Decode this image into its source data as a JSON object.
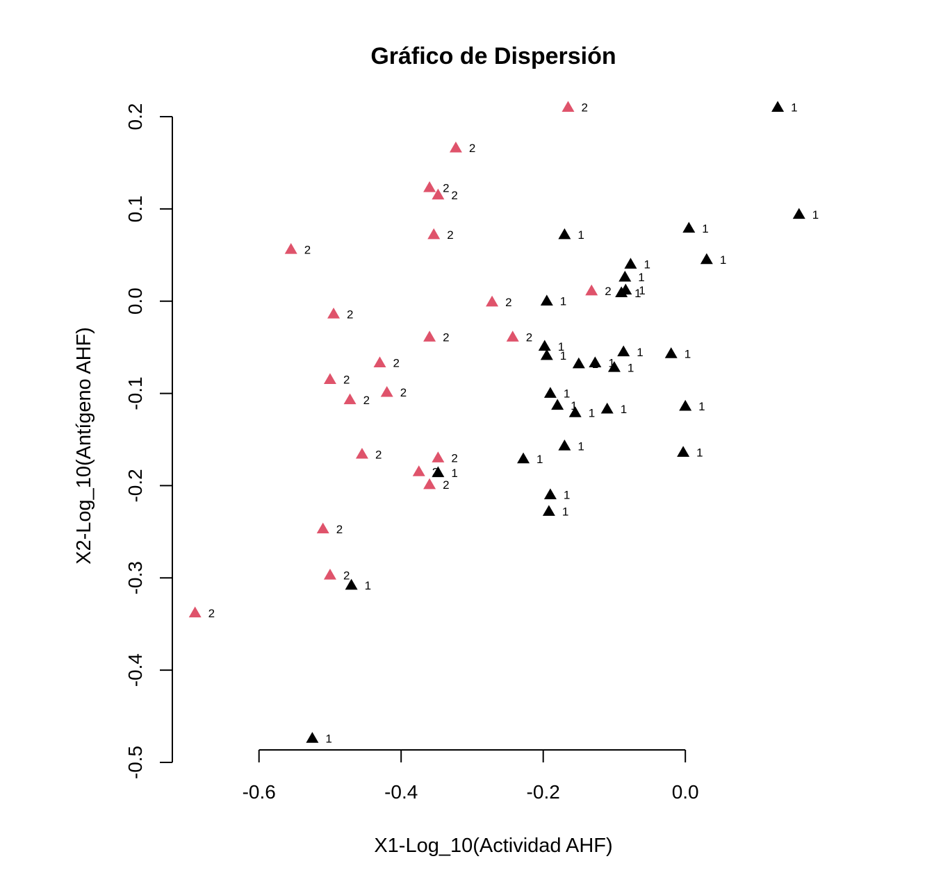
{
  "chart_data": {
    "type": "scatter",
    "title": "Gráfico de Dispersión",
    "xlabel": "X1-Log_10(Actividad AHF)",
    "ylabel": "X2-Log_10(Antígeno AHF)",
    "xlim": [
      -0.72,
      0.17
    ],
    "ylim": [
      -0.5,
      0.2
    ],
    "xticks": [
      -0.6,
      -0.4,
      -0.2,
      0.0
    ],
    "xtick_labels": [
      "-0.6",
      "-0.4",
      "-0.2",
      "0.0"
    ],
    "yticks": [
      -0.5,
      -0.4,
      -0.3,
      -0.2,
      -0.1,
      0.0,
      0.1,
      0.2
    ],
    "ytick_labels": [
      "-0.5",
      "-0.4",
      "-0.3",
      "-0.2",
      "-0.1",
      "0.0",
      "0.1",
      "0.2"
    ],
    "grid": false,
    "marker": "triangle",
    "colors": {
      "1": "#000000",
      "2": "#DF536B"
    },
    "series": [
      {
        "name": "1",
        "points": [
          [
            0.13,
            0.21
          ],
          [
            0.16,
            0.094
          ],
          [
            0.03,
            0.045
          ],
          [
            0.005,
            0.079
          ],
          [
            -0.17,
            0.072
          ],
          [
            -0.077,
            0.04
          ],
          [
            -0.085,
            0.026
          ],
          [
            -0.084,
            0.012
          ],
          [
            -0.09,
            0.009
          ],
          [
            -0.195,
            0.0
          ],
          [
            -0.198,
            -0.049
          ],
          [
            -0.195,
            -0.059
          ],
          [
            -0.15,
            -0.068
          ],
          [
            -0.127,
            -0.067
          ],
          [
            -0.1,
            -0.072
          ],
          [
            -0.087,
            -0.055
          ],
          [
            -0.02,
            -0.057
          ],
          [
            -0.19,
            -0.1
          ],
          [
            -0.18,
            -0.113
          ],
          [
            -0.155,
            -0.121
          ],
          [
            -0.11,
            -0.117
          ],
          [
            0.0,
            -0.114
          ],
          [
            -0.17,
            -0.157
          ],
          [
            -0.228,
            -0.171
          ],
          [
            -0.003,
            -0.164
          ],
          [
            -0.348,
            -0.186
          ],
          [
            -0.19,
            -0.21
          ],
          [
            -0.192,
            -0.228
          ],
          [
            -0.47,
            -0.308
          ],
          [
            -0.525,
            -0.474
          ]
        ],
        "labels": [
          "1",
          "1",
          "1",
          "1",
          "1",
          "1",
          "1",
          "1",
          "1",
          "1",
          "1",
          "1",
          "1",
          "1",
          "1",
          "1",
          "1",
          "1",
          "1",
          "1",
          "1",
          "1",
          "1",
          "1",
          "1",
          "1",
          "1",
          "1",
          "1",
          "1"
        ]
      },
      {
        "name": "2",
        "points": [
          [
            -0.165,
            0.21
          ],
          [
            -0.323,
            0.166
          ],
          [
            -0.36,
            0.123
          ],
          [
            -0.348,
            0.115
          ],
          [
            -0.354,
            0.072
          ],
          [
            -0.555,
            0.056
          ],
          [
            -0.132,
            0.011
          ],
          [
            -0.272,
            -0.001
          ],
          [
            -0.495,
            -0.014
          ],
          [
            -0.36,
            -0.039
          ],
          [
            -0.243,
            -0.039
          ],
          [
            -0.43,
            -0.067
          ],
          [
            -0.5,
            -0.085
          ],
          [
            -0.42,
            -0.099
          ],
          [
            -0.472,
            -0.107
          ],
          [
            -0.455,
            -0.166
          ],
          [
            -0.348,
            -0.17
          ],
          [
            -0.375,
            -0.185
          ],
          [
            -0.36,
            -0.199
          ],
          [
            -0.51,
            -0.247
          ],
          [
            -0.5,
            -0.297
          ],
          [
            -0.69,
            -0.338
          ]
        ],
        "labels": [
          "2",
          "2",
          "2",
          "2",
          "2",
          "2",
          "2",
          "2",
          "2",
          "2",
          "2",
          "2",
          "2",
          "2",
          "2",
          "2",
          "2",
          "2",
          "2",
          "2",
          "2",
          "2"
        ]
      }
    ]
  }
}
